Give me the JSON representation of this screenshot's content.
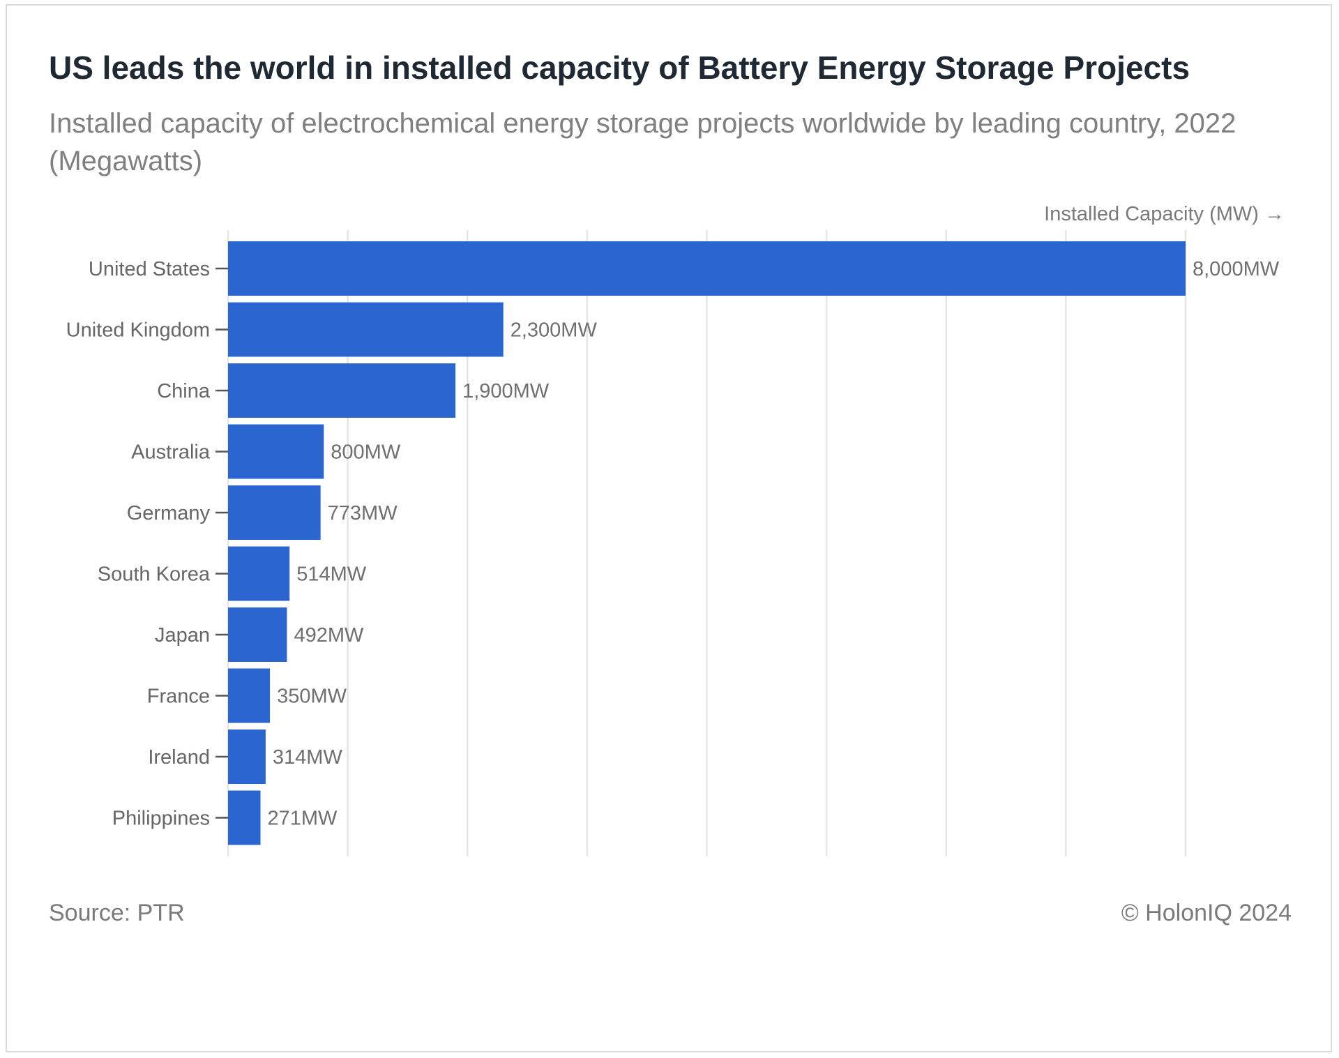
{
  "header": {
    "title": "US leads the world in installed capacity of Battery Energy Storage Projects",
    "subtitle": "Installed capacity of electrochemical energy storage projects worldwide by leading country, 2022 (Megawatts)"
  },
  "footer": {
    "source": "Source: PTR",
    "copyright": "© HolonIQ 2024"
  },
  "chart_data": {
    "type": "bar",
    "orientation": "horizontal",
    "title": "US leads the world in installed capacity of Battery Energy Storage Projects",
    "subtitle": "Installed capacity of electrochemical energy storage projects worldwide by leading country, 2022 (Megawatts)",
    "xlabel": "Installed Capacity (MW) →",
    "ylabel": "",
    "categories": [
      "United States",
      "United Kingdom",
      "China",
      "Australia",
      "Germany",
      "South Korea",
      "Japan",
      "France",
      "Ireland",
      "Philippines"
    ],
    "values": [
      8000,
      2300,
      1900,
      800,
      773,
      514,
      492,
      350,
      314,
      271
    ],
    "data_labels": [
      "8,000MW",
      "2,300MW",
      "1,900MW",
      "800MW",
      "773MW",
      "514MW",
      "492MW",
      "350MW",
      "314MW",
      "271MW"
    ],
    "xlim": [
      0,
      8000
    ],
    "grid": true,
    "bar_color": "#2b66d0"
  }
}
